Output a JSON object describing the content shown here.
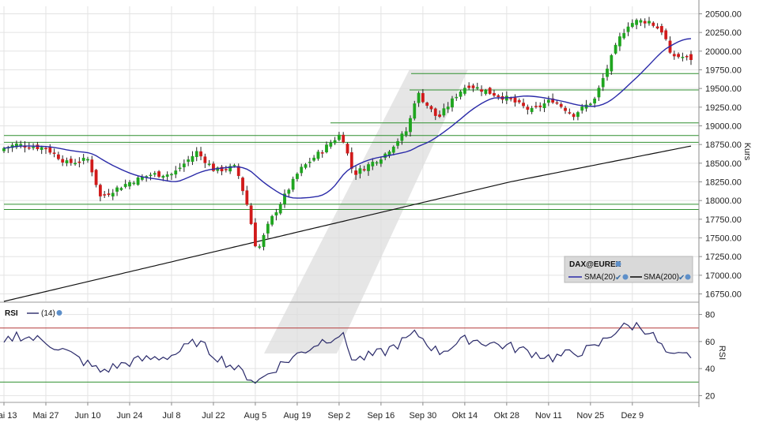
{
  "chart_data": [
    {
      "type": "candlestick",
      "instrument": "DAX@EUREX",
      "ylabel": "Kurs",
      "ylim": [
        16650,
        20600
      ],
      "y_ticks": [
        16750,
        17000,
        17250,
        17500,
        17750,
        18000,
        18250,
        18500,
        18750,
        19000,
        19250,
        19500,
        19750,
        20000,
        20250,
        20500
      ],
      "y_tick_labels": [
        "16750.00",
        "17000.00",
        "17250.00",
        "17500.00",
        "17750.00",
        "18000.00",
        "18250.00",
        "18500.00",
        "18750.00",
        "19000.00",
        "19250.00",
        "19500.00",
        "19750.00",
        "20000.00",
        "20250.00",
        "20500.00"
      ],
      "x_tick_labels": [
        "Mai 13",
        "Mai 27",
        "Jun 10",
        "Jun 24",
        "Jul 8",
        "Jul 22",
        "Aug 5",
        "Aug 19",
        "Sep 2",
        "Sep 16",
        "Sep 30",
        "Okt 14",
        "Okt 28",
        "Nov 11",
        "Nov 25",
        "Dez 9"
      ],
      "legend": {
        "title": "DAX@EUREX",
        "items": [
          {
            "label": "SMA(20)",
            "color": "#2a2aa8"
          },
          {
            "label": "SMA(200)",
            "color": "#111111"
          }
        ],
        "placement": "bottom-right"
      },
      "colors": {
        "up": "#1fa51f",
        "down": "#d11a1a",
        "support_lines": "#2f8f2f",
        "sma20": "#2a2aa8",
        "sma200": "#111111"
      },
      "grid": true,
      "horizontal_levels": [
        17880,
        17950,
        18780,
        18870,
        19040,
        19480,
        19700
      ],
      "close_keypoints": [
        {
          "date": "Mai 13",
          "close": 18700
        },
        {
          "date": "Mai 17",
          "close": 18750
        },
        {
          "date": "Mai 21",
          "close": 18730
        },
        {
          "date": "Mai 27",
          "close": 18700
        },
        {
          "date": "Jun 3",
          "close": 18500
        },
        {
          "date": "Jun 10",
          "close": 18550
        },
        {
          "date": "Jun 14",
          "close": 18050
        },
        {
          "date": "Jun 24",
          "close": 18250
        },
        {
          "date": "Jul 1",
          "close": 18350
        },
        {
          "date": "Jul 8",
          "close": 18350
        },
        {
          "date": "Jul 16",
          "close": 18650
        },
        {
          "date": "Jul 22",
          "close": 18400
        },
        {
          "date": "Jul 29",
          "close": 18450
        },
        {
          "date": "Aug 2",
          "close": 17900
        },
        {
          "date": "Aug 5",
          "close": 17300
        },
        {
          "date": "Aug 9",
          "close": 17700
        },
        {
          "date": "Aug 19",
          "close": 18400
        },
        {
          "date": "Aug 26",
          "close": 18650
        },
        {
          "date": "Sep 2",
          "close": 18900
        },
        {
          "date": "Sep 6",
          "close": 18350
        },
        {
          "date": "Sep 16",
          "close": 18600
        },
        {
          "date": "Sep 24",
          "close": 18950
        },
        {
          "date": "Sep 27",
          "close": 19450
        },
        {
          "date": "Sep 30",
          "close": 19300
        },
        {
          "date": "Okt 4",
          "close": 19100
        },
        {
          "date": "Okt 11",
          "close": 19450
        },
        {
          "date": "Okt 14",
          "close": 19550
        },
        {
          "date": "Okt 21",
          "close": 19450
        },
        {
          "date": "Okt 28",
          "close": 19350
        },
        {
          "date": "Nov 4",
          "close": 19200
        },
        {
          "date": "Nov 11",
          "close": 19350
        },
        {
          "date": "Nov 18",
          "close": 19150
        },
        {
          "date": "Nov 25",
          "close": 19350
        },
        {
          "date": "Nov 29",
          "close": 19750
        },
        {
          "date": "Dez 3",
          "close": 20150
        },
        {
          "date": "Dez 6",
          "close": 20350
        },
        {
          "date": "Dez 9",
          "close": 20400
        },
        {
          "date": "Dez 13",
          "close": 20400
        },
        {
          "date": "Dez 18",
          "close": 20250
        },
        {
          "date": "Dez 20",
          "close": 19950
        },
        {
          "date": "Dez 27",
          "close": 19900
        }
      ],
      "sma200_keypoints": [
        {
          "date": "Mai 13",
          "value": 16650
        },
        {
          "date": "Aug 5",
          "value": 17450
        },
        {
          "date": "Sep 16",
          "value": 17850
        },
        {
          "date": "Okt 28",
          "value": 18250
        },
        {
          "date": "Dez 27",
          "value": 18730
        }
      ]
    },
    {
      "type": "line",
      "indicator": "RSI",
      "period_label": "(14)",
      "ylabel": "RSI",
      "ylim": [
        15,
        85
      ],
      "y_ticks": [
        20,
        40,
        60,
        80
      ],
      "y_tick_labels": [
        "20",
        "40",
        "60",
        "80"
      ],
      "reference_lines": [
        {
          "value": 70,
          "color": "#b33a3a"
        },
        {
          "value": 30,
          "color": "#2f8f2f"
        }
      ],
      "keypoints": [
        {
          "date": "Mai 13",
          "value": 58
        },
        {
          "date": "Mai 17",
          "value": 65
        },
        {
          "date": "Mai 27",
          "value": 60
        },
        {
          "date": "Jun 3",
          "value": 52
        },
        {
          "date": "Jun 14",
          "value": 38
        },
        {
          "date": "Jun 24",
          "value": 45
        },
        {
          "date": "Jul 8",
          "value": 50
        },
        {
          "date": "Jul 16",
          "value": 60
        },
        {
          "date": "Jul 22",
          "value": 50
        },
        {
          "date": "Aug 5",
          "value": 30
        },
        {
          "date": "Aug 12",
          "value": 42
        },
        {
          "date": "Aug 26",
          "value": 60
        },
        {
          "date": "Sep 2",
          "value": 66
        },
        {
          "date": "Sep 6",
          "value": 46
        },
        {
          "date": "Sep 16",
          "value": 52
        },
        {
          "date": "Sep 27",
          "value": 66
        },
        {
          "date": "Okt 4",
          "value": 52
        },
        {
          "date": "Okt 14",
          "value": 62
        },
        {
          "date": "Okt 28",
          "value": 56
        },
        {
          "date": "Nov 11",
          "value": 48
        },
        {
          "date": "Nov 25",
          "value": 55
        },
        {
          "date": "Dez 3",
          "value": 70
        },
        {
          "date": "Dez 9",
          "value": 72
        },
        {
          "date": "Dez 13",
          "value": 68
        },
        {
          "date": "Dez 20",
          "value": 48
        },
        {
          "date": "Dez 27",
          "value": 50
        }
      ]
    }
  ]
}
